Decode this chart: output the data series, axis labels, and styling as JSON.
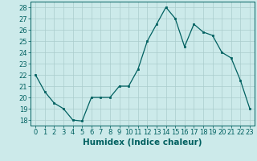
{
  "xlabel": "Humidex (Indice chaleur)",
  "x_values": [
    0,
    1,
    2,
    3,
    4,
    5,
    6,
    7,
    8,
    9,
    10,
    11,
    12,
    13,
    14,
    15,
    16,
    17,
    18,
    19,
    20,
    21,
    22,
    23
  ],
  "y_values": [
    22,
    20.5,
    19.5,
    19,
    18,
    17.9,
    20,
    20,
    20,
    21,
    21,
    22.5,
    25,
    26.5,
    28,
    27,
    24.5,
    26.5,
    25.8,
    25.5,
    24,
    23.5,
    21.5,
    19
  ],
  "ylim": [
    17.5,
    28.5
  ],
  "yticks": [
    18,
    19,
    20,
    21,
    22,
    23,
    24,
    25,
    26,
    27,
    28
  ],
  "line_color": "#006060",
  "marker": "s",
  "marker_size": 2.0,
  "bg_color": "#cceaea",
  "grid_color": "#aacccc",
  "tick_label_fontsize": 6.0,
  "xlabel_fontsize": 7.5
}
